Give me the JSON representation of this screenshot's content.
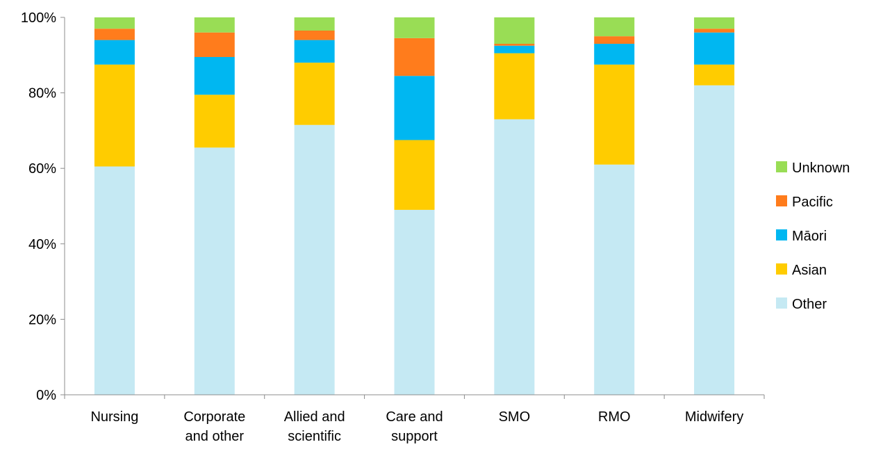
{
  "chart_data": {
    "type": "bar",
    "stacked": true,
    "percent": true,
    "title": "",
    "xlabel": "",
    "ylabel": "",
    "ylim": [
      0,
      100
    ],
    "y_ticks": [
      0,
      20,
      40,
      60,
      80,
      100
    ],
    "y_tick_labels": [
      "0%",
      "20%",
      "40%",
      "60%",
      "80%",
      "100%"
    ],
    "grid": false,
    "legend_position": "right",
    "categories": [
      [
        "Nursing"
      ],
      [
        "Corporate",
        "and other"
      ],
      [
        "Allied and",
        "scientific"
      ],
      [
        "Care and",
        "support"
      ],
      [
        "SMO"
      ],
      [
        "RMO"
      ],
      [
        "Midwifery"
      ]
    ],
    "series": [
      {
        "name": "Other",
        "color": "#C5E9F3",
        "values": [
          60.5,
          65.5,
          71.5,
          49.0,
          73.0,
          61.0,
          82.0
        ]
      },
      {
        "name": "Asian",
        "color": "#FFCC00",
        "values": [
          27.0,
          14.0,
          16.5,
          18.5,
          17.5,
          26.5,
          5.5
        ]
      },
      {
        "name": "Māori",
        "color": "#00B7F1",
        "values": [
          6.5,
          10.0,
          6.0,
          17.0,
          2.0,
          5.5,
          8.5
        ]
      },
      {
        "name": "Pacific",
        "color": "#FF7C1C",
        "values": [
          3.0,
          6.5,
          2.5,
          10.0,
          0.5,
          2.0,
          1.0
        ]
      },
      {
        "name": "Unknown",
        "color": "#99DD55",
        "values": [
          3.0,
          4.0,
          3.5,
          5.5,
          7.0,
          5.0,
          3.0
        ]
      }
    ],
    "legend_order": [
      "Unknown",
      "Pacific",
      "Māori",
      "Asian",
      "Other"
    ]
  }
}
